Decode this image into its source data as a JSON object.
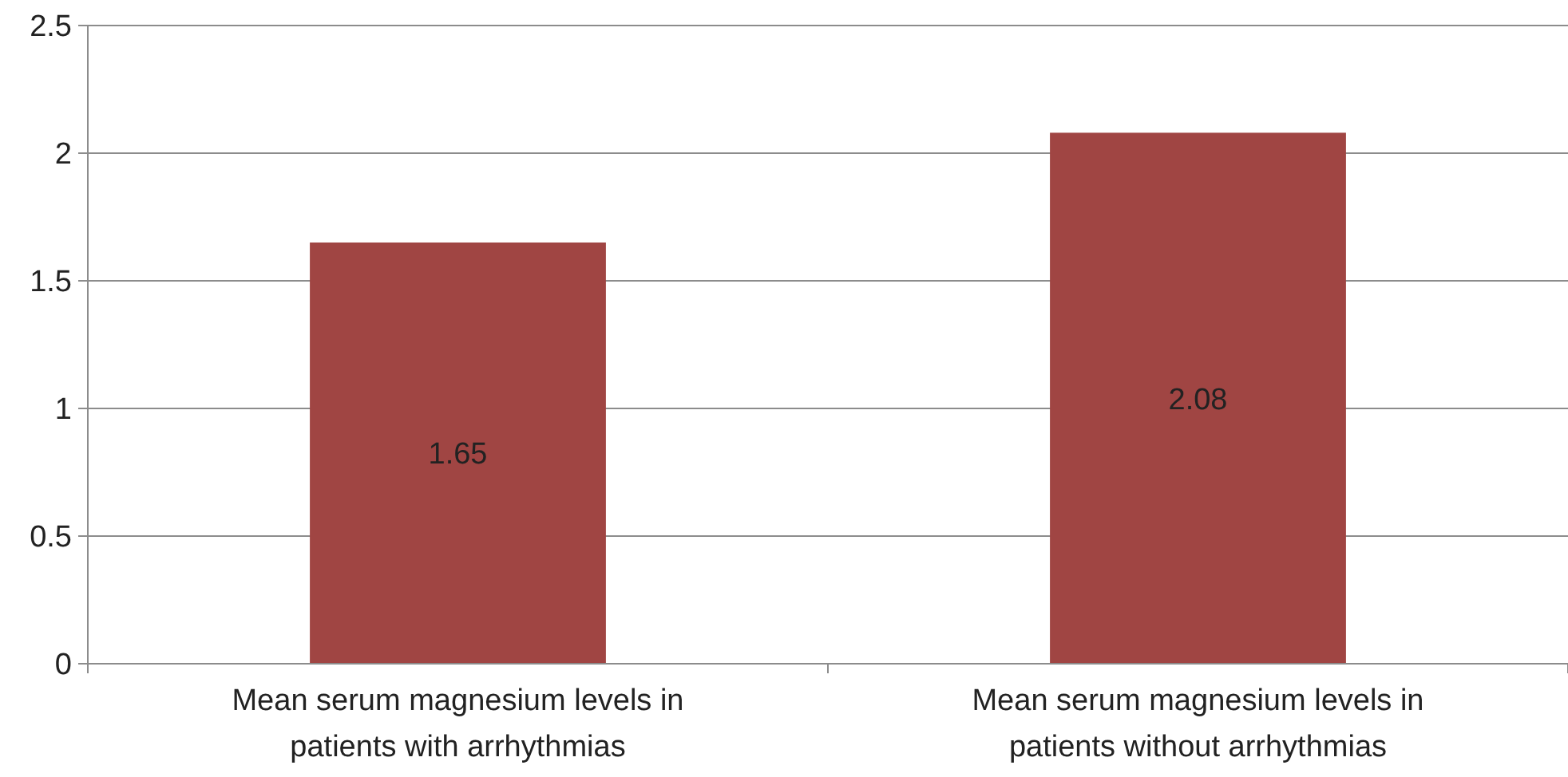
{
  "chart_data": {
    "type": "bar",
    "categories": [
      "Mean serum magnesium levels in patients with arrhythmias",
      "Mean serum magnesium levels in patients without arrhythmias"
    ],
    "values": [
      1.65,
      2.08
    ],
    "color": "#a04543",
    "ylim": [
      0,
      2.5
    ],
    "yticks": [
      0,
      0.5,
      1,
      1.5,
      2,
      2.5
    ],
    "grid": "y",
    "data_labels": true
  }
}
